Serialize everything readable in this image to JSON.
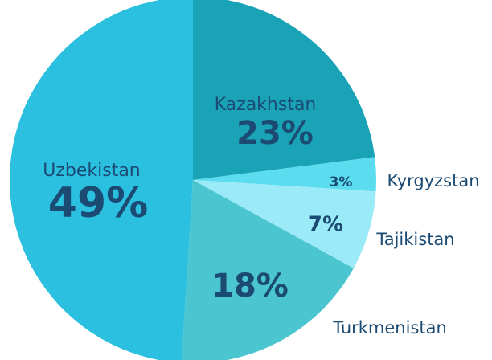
{
  "chart_data": {
    "type": "pie",
    "categories": [
      "Kazakhstan",
      "Kyrgyzstan",
      "Tajikistan",
      "Turkmenistan",
      "Uzbekistan"
    ],
    "values": [
      23,
      3,
      7,
      18,
      49
    ],
    "value_labels": [
      "23%",
      "3%",
      "7%",
      "18%",
      "49%"
    ],
    "colors": [
      "#1aa3b6",
      "#5cdcef",
      "#9beaf7",
      "#4bc6d0",
      "#2bbfe0"
    ]
  }
}
